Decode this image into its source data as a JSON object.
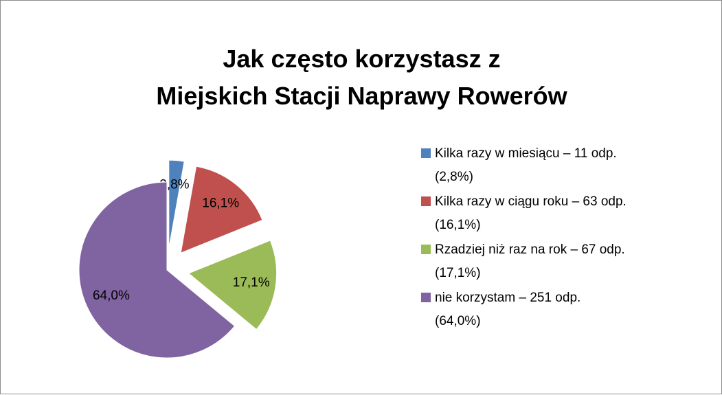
{
  "chart_data": {
    "type": "pie",
    "title": "Jak często korzystasz z\nMiejskich Stacji Naprawy Rowerów",
    "categories": [
      "Kilka razy w miesiącu – 11 odp.\n(2,8%)",
      "Kilka razy w ciągu roku – 63 odp.\n(16,1%)",
      "Rzadziej niż raz na rok – 67 odp.\n(17,1%)",
      "nie korzystam – 251 odp.\n(64,0%)"
    ],
    "values": [
      2.8,
      16.1,
      17.1,
      64.0
    ],
    "value_labels": [
      "2,8%",
      "16,1%",
      "17,1%",
      "64,0%"
    ],
    "colors": [
      "#4f81bd",
      "#c0504d",
      "#9bbb59",
      "#8064a2"
    ],
    "explode": [
      true,
      true,
      true,
      false
    ],
    "legend": "right"
  }
}
